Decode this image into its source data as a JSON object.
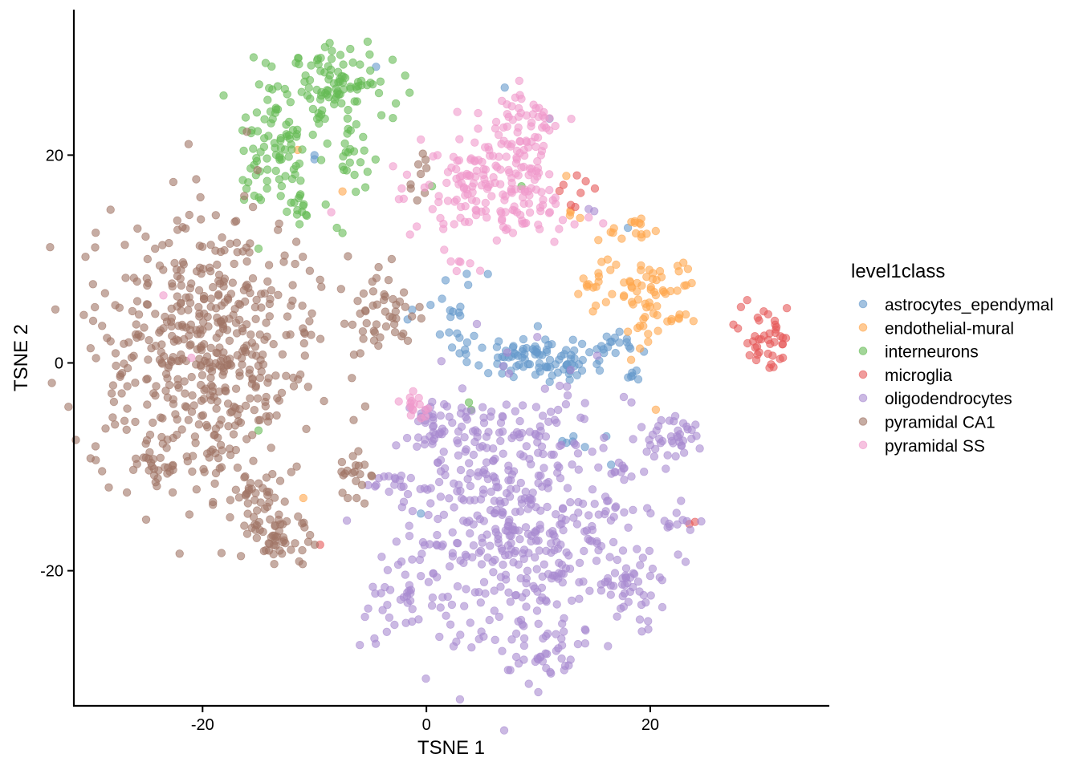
{
  "chart_data": {
    "type": "scatter",
    "xlabel": "TSNE 1",
    "ylabel": "TSNE 2",
    "xlim": [
      -31.5,
      36
    ],
    "ylim": [
      -33,
      34
    ],
    "xticks": [
      -20,
      0,
      20
    ],
    "yticks": [
      -20,
      0,
      20
    ],
    "xtick_labels": [
      "-20",
      "0",
      "20"
    ],
    "ytick_labels": [
      "-20",
      "0",
      "20"
    ],
    "grid": false,
    "legend": {
      "title": "level1class",
      "placement": "right"
    },
    "point_opacity": 0.6,
    "series": [
      {
        "name": "astrocytes_ependymal",
        "color": "#6699CC",
        "clusters": [
          {
            "center": [
              10,
              0.5
            ],
            "spread": [
              3.0,
              1.2
            ],
            "count": 95
          },
          {
            "center": [
              16.5,
              2.0
            ],
            "spread": [
              1.6,
              0.5
            ],
            "count": 14
          },
          {
            "center": [
              2.2,
              4.5
            ],
            "spread": [
              1.6,
              2.6
            ],
            "count": 22
          },
          {
            "center": [
              18.5,
              -1.0
            ],
            "spread": [
              0.6,
              0.4
            ],
            "count": 6
          },
          {
            "center": [
              13.5,
              -7.3
            ],
            "spread": [
              0.8,
              0.3
            ],
            "count": 6
          }
        ],
        "points": [
          [
            -4.5,
            28.5
          ],
          [
            7,
            26.5
          ],
          [
            11,
            23.5
          ],
          [
            -10,
            20
          ],
          [
            -10,
            19.6
          ],
          [
            -0.5,
            -14.5
          ],
          [
            18,
            13
          ],
          [
            16.5,
            -9.8
          ]
        ]
      },
      {
        "name": "endothelial-mural",
        "color": "#FFA64D",
        "clusters": [
          {
            "center": [
              20.5,
              6.5
            ],
            "spread": [
              1.9,
              2.4
            ],
            "count": 65
          },
          {
            "center": [
              15.5,
              7.5
            ],
            "spread": [
              1.0,
              1.6
            ],
            "count": 18
          },
          {
            "center": [
              18.7,
              12.5
            ],
            "spread": [
              0.9,
              0.8
            ],
            "count": 14
          },
          {
            "center": [
              13,
              14.5
            ],
            "spread": [
              0.5,
              0.5
            ],
            "count": 4
          }
        ],
        "points": [
          [
            -11.5,
            20.5
          ],
          [
            -7.5,
            16.5
          ],
          [
            -11,
            -13
          ],
          [
            20.5,
            -4.5
          ],
          [
            12.5,
            18
          ],
          [
            18,
            3
          ]
        ]
      },
      {
        "name": "interneurons",
        "color": "#66BB55",
        "clusters": [
          {
            "center": [
              -8,
              27
            ],
            "spread": [
              2.4,
              2.0
            ],
            "count": 95
          },
          {
            "center": [
              -13.5,
              21
            ],
            "spread": [
              1.8,
              3.0
            ],
            "count": 80
          },
          {
            "center": [
              -7,
              19.5
            ],
            "spread": [
              1.4,
              2.2
            ],
            "count": 28
          },
          {
            "center": [
              -11,
              15.5
            ],
            "spread": [
              1.2,
              1.2
            ],
            "count": 14
          }
        ],
        "points": [
          [
            -1.5,
            26
          ],
          [
            -15,
            11
          ],
          [
            -8,
            13
          ],
          [
            -7.5,
            12.5
          ],
          [
            0.5,
            17
          ],
          [
            8.5,
            17
          ],
          [
            4,
            -4.5
          ],
          [
            3.8,
            -3.8
          ],
          [
            -15,
            -6.5
          ]
        ]
      },
      {
        "name": "microglia",
        "color": "#E65A5A",
        "clusters": [
          {
            "center": [
              30.5,
              2.5
            ],
            "spread": [
              1.3,
              1.6
            ],
            "count": 42
          },
          {
            "center": [
              13,
              17.5
            ],
            "spread": [
              0.7,
              0.8
            ],
            "count": 6
          }
        ],
        "points": [
          [
            -9.5,
            -17.5
          ],
          [
            23.5,
            -15.5
          ],
          [
            24,
            -15.3
          ],
          [
            13.3,
            15
          ],
          [
            12.9,
            15.2
          ]
        ]
      },
      {
        "name": "oligodendrocytes",
        "color": "#A98BD0",
        "clusters": [
          {
            "center": [
              8,
              -15
            ],
            "spread": [
              5.2,
              6.2
            ],
            "count": 480
          },
          {
            "center": [
              1.5,
              -6
            ],
            "spread": [
              2.5,
              1.5
            ],
            "count": 42
          },
          {
            "center": [
              -3.5,
              -11.5
            ],
            "spread": [
              1.2,
              0.6
            ],
            "count": 14
          },
          {
            "center": [
              -2,
              -23.5
            ],
            "spread": [
              1.8,
              1.6
            ],
            "count": 30
          },
          {
            "center": [
              18.5,
              -21.5
            ],
            "spread": [
              1.3,
              1.6
            ],
            "count": 40
          },
          {
            "center": [
              21.5,
              -7
            ],
            "spread": [
              1.4,
              1.4
            ],
            "count": 38
          },
          {
            "center": [
              22,
              -15
            ],
            "spread": [
              1.6,
              0.5
            ],
            "count": 12
          },
          {
            "center": [
              17.5,
              -10.5
            ],
            "spread": [
              0.8,
              0.6
            ],
            "count": 10
          },
          {
            "center": [
              10.5,
              -28
            ],
            "spread": [
              1.6,
              1.2
            ],
            "count": 30
          }
        ],
        "points": [
          [
            14.5,
            14.8
          ],
          [
            15,
            14.6
          ],
          [
            20,
            -20.5
          ]
        ]
      },
      {
        "name": "pyramidal CA1",
        "color": "#A07565",
        "clusters": [
          {
            "center": [
              -19.5,
              1
            ],
            "spread": [
              5.2,
              6.4
            ],
            "count": 520
          },
          {
            "center": [
              -15.5,
              -12.5
            ],
            "spread": [
              1.5,
              1.8
            ],
            "count": 28
          },
          {
            "center": [
              -13.5,
              -16.5
            ],
            "spread": [
              1.5,
              1.8
            ],
            "count": 55
          },
          {
            "center": [
              -3.5,
              4.5
            ],
            "spread": [
              1.5,
              2.3
            ],
            "count": 42
          },
          {
            "center": [
              -6.5,
              -11.5
            ],
            "spread": [
              1.0,
              1.4
            ],
            "count": 20
          },
          {
            "center": [
              -24,
              -10.5
            ],
            "spread": [
              1.5,
              0.8
            ],
            "count": 20
          },
          {
            "center": [
              -0.8,
              18
            ],
            "spread": [
              0.8,
              1.6
            ],
            "count": 9
          }
        ],
        "points": [
          [
            -9.5,
            8
          ],
          [
            -15.5,
            15
          ],
          [
            -6.5,
            -5.5
          ],
          [
            -7.5,
            -12.5
          ]
        ]
      },
      {
        "name": "pyramidal SS",
        "color": "#F09ACC",
        "clusters": [
          {
            "center": [
              8.5,
              22.5
            ],
            "spread": [
              1.7,
              2.2
            ],
            "count": 65
          },
          {
            "center": [
              6.5,
              16
            ],
            "spread": [
              3.5,
              2.2
            ],
            "count": 130
          },
          {
            "center": [
              3,
              18
            ],
            "spread": [
              1.8,
              2.2
            ],
            "count": 38
          },
          {
            "center": [
              -0.5,
              -4
            ],
            "spread": [
              1.0,
              0.7
            ],
            "count": 16
          },
          {
            "center": [
              2.5,
              9.5
            ],
            "spread": [
              0.6,
              0.4
            ],
            "count": 5
          }
        ],
        "points": [
          [
            -23.5,
            6.5
          ],
          [
            -21,
            0.5
          ],
          [
            -8.5,
            14.5
          ],
          [
            14.5,
            14
          ],
          [
            -0.5,
            21.5
          ]
        ]
      }
    ]
  }
}
